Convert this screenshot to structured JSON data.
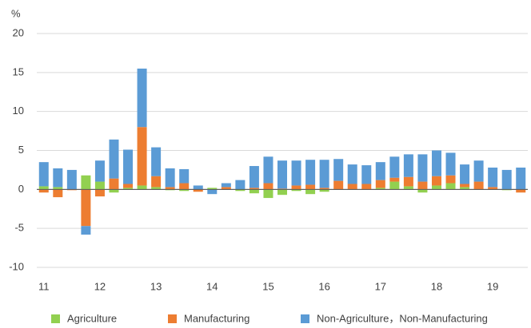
{
  "chart_data": {
    "type": "bar",
    "stacked": true,
    "y_label": "%",
    "categories": [
      "11",
      null,
      null,
      null,
      "12",
      null,
      null,
      null,
      "13",
      null,
      null,
      null,
      "14",
      null,
      null,
      null,
      "15",
      null,
      null,
      null,
      "16",
      null,
      null,
      null,
      "17",
      null,
      null,
      null,
      "18",
      null,
      null,
      null,
      "19",
      null,
      null
    ],
    "series": [
      {
        "name": "Agriculture",
        "color": "#92d050",
        "values": [
          0.4,
          0.3,
          0,
          1.8,
          1.0,
          -0.4,
          0.2,
          0.5,
          0.3,
          -0.1,
          -0.2,
          0,
          0.2,
          0,
          -0.2,
          -0.5,
          -1.1,
          -0.7,
          -0.2,
          -0.6,
          -0.3,
          0,
          0,
          0,
          0.2,
          1.0,
          0.4,
          -0.4,
          0.5,
          0.8,
          0.3,
          0,
          0,
          -0.1,
          0
        ]
      },
      {
        "name": "Manufacturing",
        "color": "#ed7d31",
        "values": [
          -0.4,
          -1.0,
          -0.1,
          -4.7,
          -0.9,
          1.4,
          0.5,
          7.5,
          1.4,
          0.3,
          0.8,
          -0.3,
          0,
          0.3,
          0,
          0.2,
          0.8,
          0.1,
          0.5,
          0.6,
          0.2,
          1.1,
          0.7,
          0.7,
          1.0,
          0.5,
          1.2,
          1.0,
          1.2,
          1.0,
          0.4,
          1.0,
          0.3,
          0,
          -0.4
        ]
      },
      {
        "name": "Non-Agriculture，Non-Manufacturing",
        "color": "#5b9bd5",
        "values": [
          3.1,
          2.4,
          2.5,
          -1.1,
          2.7,
          5.0,
          4.4,
          7.5,
          3.7,
          2.4,
          1.8,
          0.5,
          -0.6,
          0.5,
          1.2,
          2.8,
          3.4,
          3.6,
          3.2,
          3.2,
          3.6,
          2.8,
          2.5,
          2.4,
          2.3,
          2.7,
          2.9,
          3.5,
          3.3,
          2.9,
          2.5,
          2.7,
          2.5,
          2.5,
          2.8
        ]
      }
    ],
    "ylim": [
      -10,
      20
    ],
    "yticks": [
      -10,
      -5,
      0,
      5,
      10,
      15,
      20
    ],
    "grid": true,
    "legend": "bottom"
  }
}
